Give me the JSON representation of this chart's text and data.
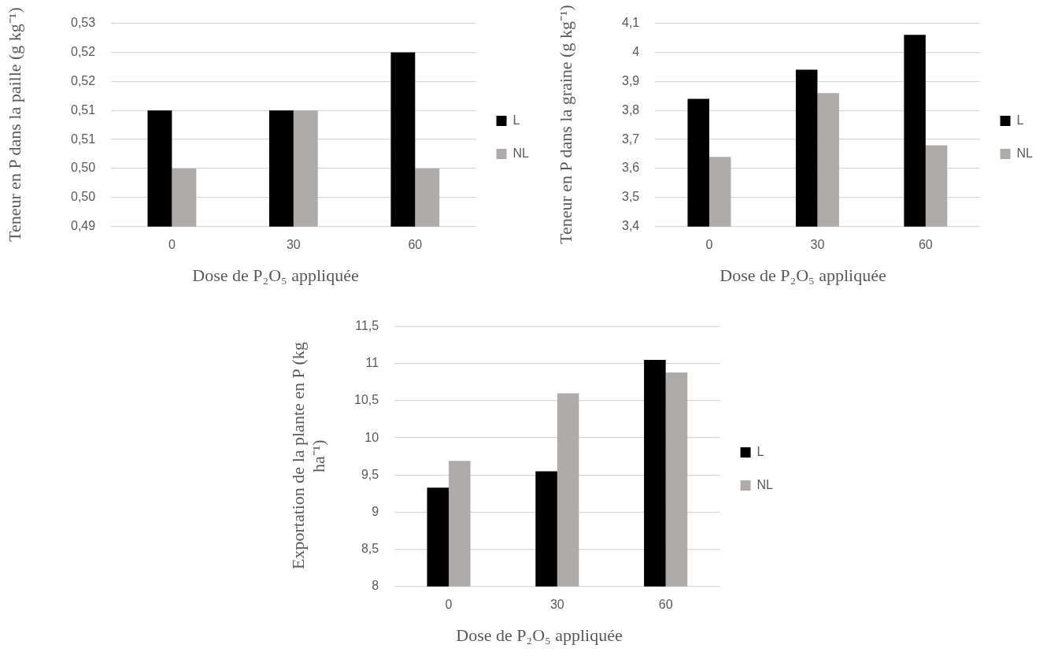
{
  "chart_data": [
    {
      "type": "bar",
      "xlabel": "Dose de P₂O₅ appliquée",
      "ylabel": "Teneur en P dans la paille (g kg⁻¹)",
      "categories": [
        "0",
        "30",
        "60"
      ],
      "series": [
        {
          "name": "L",
          "color": "#000000",
          "values": [
            0.51,
            0.51,
            0.52
          ]
        },
        {
          "name": "NL",
          "color": "#afabab",
          "values": [
            0.5,
            0.51,
            0.5
          ]
        }
      ],
      "ylim": [
        0.49,
        0.525
      ],
      "yticks": [
        {
          "value": 0.49,
          "label": "0,49"
        },
        {
          "value": 0.495,
          "label": "0,50"
        },
        {
          "value": 0.5,
          "label": "0,50"
        },
        {
          "value": 0.505,
          "label": "0,51"
        },
        {
          "value": 0.51,
          "label": "0,51"
        },
        {
          "value": 0.515,
          "label": "0,52"
        },
        {
          "value": 0.52,
          "label": "0,52"
        },
        {
          "value": 0.525,
          "label": "0,53"
        }
      ],
      "grid": "y",
      "legend": "right"
    },
    {
      "type": "bar",
      "xlabel": "Dose de P₂O₅ appliquée",
      "ylabel": "Teneur en P dans la graine (g kg⁻¹)",
      "categories": [
        "0",
        "30",
        "60"
      ],
      "series": [
        {
          "name": "L",
          "color": "#000000",
          "values": [
            3.84,
            3.94,
            4.06
          ]
        },
        {
          "name": "NL",
          "color": "#afabab",
          "values": [
            3.64,
            3.86,
            3.68
          ]
        }
      ],
      "ylim": [
        3.4,
        4.1
      ],
      "yticks": [
        {
          "value": 3.4,
          "label": "3,4"
        },
        {
          "value": 3.5,
          "label": "3,5"
        },
        {
          "value": 3.6,
          "label": "3,6"
        },
        {
          "value": 3.7,
          "label": "3,7"
        },
        {
          "value": 3.8,
          "label": "3,8"
        },
        {
          "value": 3.9,
          "label": "3,9"
        },
        {
          "value": 4,
          "label": "4"
        },
        {
          "value": 4.1,
          "label": "4,1"
        }
      ],
      "grid": "y",
      "legend": "right"
    },
    {
      "type": "bar",
      "xlabel": "Dose de P₂O₅ appliquée",
      "ylabel": "Exportation de la plante en P (kg ha⁻¹)",
      "categories": [
        "0",
        "30",
        "60"
      ],
      "series": [
        {
          "name": "L",
          "color": "#000000",
          "values": [
            9.33,
            9.55,
            11.05
          ]
        },
        {
          "name": "NL",
          "color": "#afabab",
          "values": [
            9.69,
            10.6,
            10.88
          ]
        }
      ],
      "ylim": [
        8,
        11.5
      ],
      "yticks": [
        {
          "value": 8,
          "label": "8"
        },
        {
          "value": 8.5,
          "label": "8,5"
        },
        {
          "value": 9,
          "label": "9"
        },
        {
          "value": 9.5,
          "label": "9,5"
        },
        {
          "value": 10,
          "label": "10"
        },
        {
          "value": 10.5,
          "label": "10,5"
        },
        {
          "value": 11,
          "label": "11"
        },
        {
          "value": 11.5,
          "label": "11,5"
        }
      ],
      "grid": "y",
      "legend": "right"
    }
  ]
}
